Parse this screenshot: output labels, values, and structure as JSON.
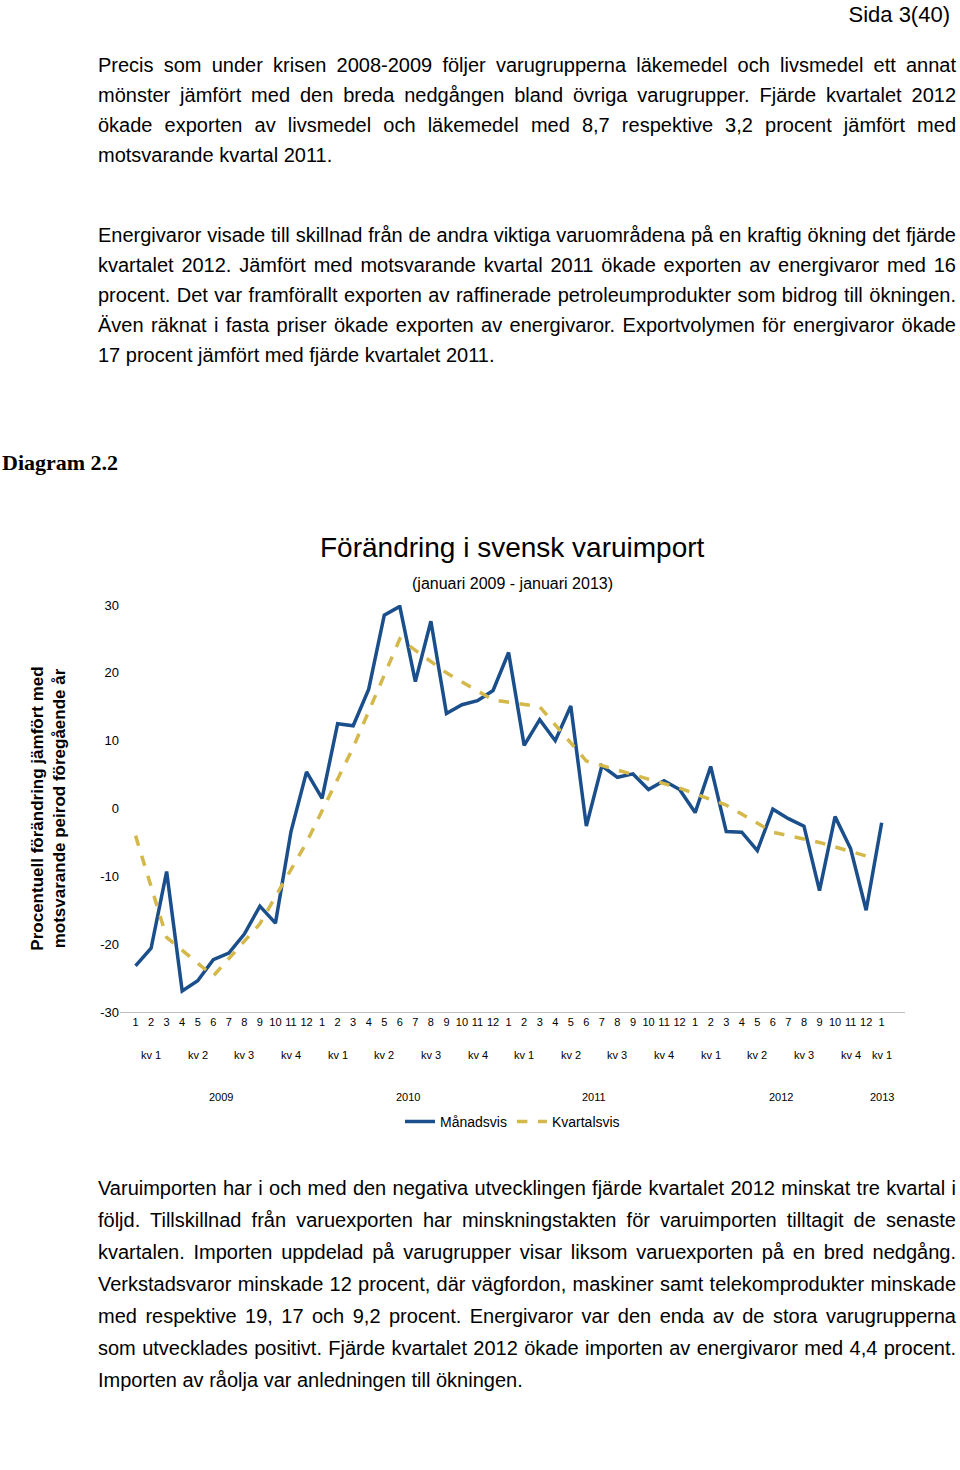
{
  "page_header": "Sida 3(40)",
  "paragraphs_before": [
    "Precis som under krisen 2008-2009 följer varugrupperna läkemedel och livsmedel ett annat mönster jämfört med den breda nedgången bland övriga varugrupper. Fjärde kvartalet 2012 ökade exporten av livsmedel och läkemedel med 8,7 respektive 3,2 procent jämfört med motsvarande kvartal 2011.",
    "Energivaror visade till skillnad från de andra viktiga varuområdena på en kraftig ökning det fjärde kvartalet 2012. Jämfört med motsvarande kvartal 2011 ökade exporten av energivaror med 16 procent. Det var framförallt exporten av raffinerade petroleumprodukter som bidrog till ökningen. Även räknat i fasta priser ökade exporten av energivaror. Exportvolymen för energivaror ökade 17 procent jämfört med fjärde kvartalet 2011."
  ],
  "diagram_label": "Diagram 2.2",
  "chart_data": {
    "type": "line",
    "title": "Förändring i svensk varuimport",
    "subtitle": "(januari 2009 - januari 2013)",
    "y_label": "Procentuell förändring jämfört med motsvarande peirod föregående år",
    "categories": [
      "1",
      "2",
      "3",
      "4",
      "5",
      "6",
      "7",
      "8",
      "9",
      "10",
      "11",
      "12",
      "1",
      "2",
      "3",
      "4",
      "5",
      "6",
      "7",
      "8",
      "9",
      "10",
      "11",
      "12",
      "1",
      "2",
      "3",
      "4",
      "5",
      "6",
      "7",
      "8",
      "9",
      "10",
      "11",
      "12",
      "1",
      "2",
      "3",
      "4",
      "5",
      "6",
      "7",
      "8",
      "9",
      "10",
      "11",
      "12",
      "1"
    ],
    "quarter_labels": [
      "kv 1",
      "kv 2",
      "kv 3",
      "kv 4",
      "kv 1",
      "kv 2",
      "kv 3",
      "kv 4",
      "kv 1",
      "kv 2",
      "kv 3",
      "kv 4",
      "kv 1",
      "kv 2",
      "kv 3",
      "kv 4",
      "kv 1"
    ],
    "year_labels": [
      "2009",
      "2010",
      "2011",
      "2012",
      "2013"
    ],
    "series": [
      {
        "name": "Månadsvis",
        "color": "#1a4f8b",
        "line_style": "solid",
        "values": [
          -23.2,
          -20.6,
          -9.3,
          -26.9,
          -25.4,
          -22.3,
          -21.3,
          -18.5,
          -14.4,
          -16.9,
          -3.4,
          5.4,
          1.5,
          12.5,
          12.2,
          17.6,
          28.5,
          29.8,
          18.7,
          27.6,
          14.0,
          15.3,
          15.9,
          17.4,
          23.0,
          9.3,
          13.1,
          10.0,
          15.1,
          -2.6,
          6.3,
          4.6,
          5.1,
          2.8,
          4.1,
          2.8,
          -0.6,
          6.2,
          -3.4,
          -3.5,
          -6.2,
          -0.1,
          -1.5,
          -2.6,
          -12.1,
          -1.2,
          -5.9,
          -15.0,
          -2.1
        ]
      },
      {
        "name": "Kvartalsvis",
        "color": "#d4b84a",
        "line_style": "dash",
        "values": [
          -4.0,
          null,
          -19.0,
          null,
          null,
          -24.7,
          null,
          null,
          -17.0,
          null,
          null,
          -5.0,
          null,
          null,
          9.0,
          null,
          null,
          25.0,
          null,
          null,
          20.0,
          null,
          null,
          16.0,
          null,
          null,
          15.0,
          null,
          null,
          7.0,
          null,
          null,
          5.0,
          null,
          null,
          3.0,
          null,
          null,
          0.5,
          null,
          null,
          -3.5,
          null,
          null,
          -5.0,
          null,
          null,
          -7.0,
          null
        ]
      }
    ],
    "ylim": [
      -30,
      30
    ],
    "yticks": [
      -30,
      -20,
      -10,
      0,
      10,
      20,
      30
    ],
    "grid": false,
    "legend": "bottom"
  },
  "paragraphs_after": [
    "Varuimporten har i och med den negativa utvecklingen fjärde kvartalet 2012 minskat tre kvartal i följd. Tillskillnad från varuexporten har minskningstakten för varuimporten tilltagit de senaste kvartalen. Importen uppdelad på varugrupper visar liksom varuexporten på en bred nedgång. Verkstadsvaror minskade 12 procent, där vägfordon, maskiner samt telekomprodukter minskade med respektive 19, 17 och 9,2 procent. Energivaror var den enda av de stora varugrupperna som utvecklades positivt. Fjärde kvartalet 2012 ökade importen av energivaror med 4,4 procent. Importen av råolja var anledningen till ökningen."
  ]
}
